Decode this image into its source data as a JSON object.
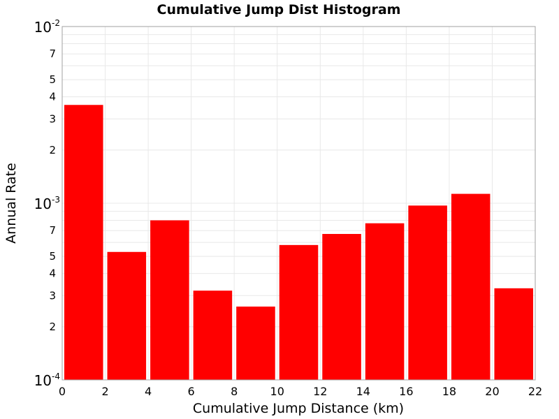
{
  "chart_data": {
    "type": "bar",
    "title": "Cumulative Jump Dist Histogram",
    "xlabel": "Cumulative Jump Distance (km)",
    "ylabel": "Annual Rate",
    "x_bin_edges": [
      0,
      2,
      4,
      6,
      8,
      10,
      12,
      14,
      16,
      18,
      20,
      22
    ],
    "values": [
      0.0036,
      0.00053,
      0.0008,
      0.00032,
      0.00026,
      0.00058,
      0.00067,
      0.00077,
      0.00097,
      0.00113,
      0.00033
    ],
    "xlim": [
      0,
      22
    ],
    "ylim": [
      0.0001,
      0.01
    ],
    "yscale": "log",
    "x_ticks": [
      "0",
      "2",
      "4",
      "6",
      "8",
      "10",
      "12",
      "14",
      "16",
      "18",
      "20",
      "22"
    ],
    "y_major_ticks": [
      {
        "value": 0.01,
        "base": "10",
        "exp": "-2"
      },
      {
        "value": 0.001,
        "base": "10",
        "exp": "-3"
      },
      {
        "value": 0.0001,
        "base": "10",
        "exp": "-4"
      }
    ],
    "y_minor_tick_labels": [
      "2",
      "3",
      "4",
      "5",
      "7"
    ],
    "bar_color": "#ff0000",
    "grid": true,
    "grid_color": "#e8e8e8",
    "legend": "none"
  }
}
